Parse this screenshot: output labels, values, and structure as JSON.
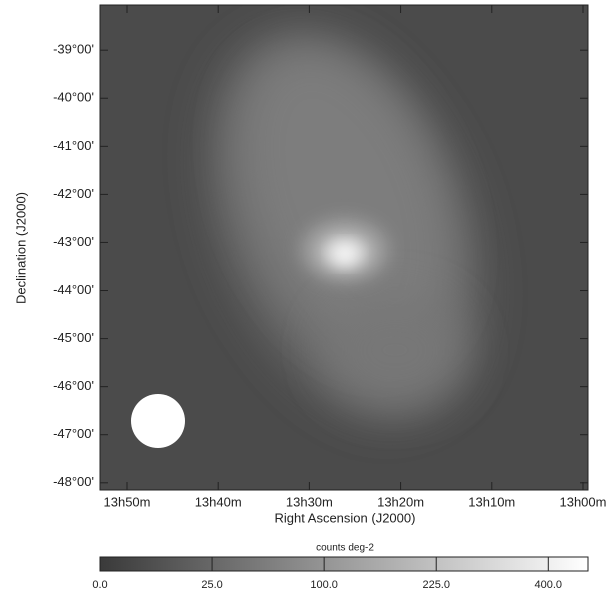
{
  "chart_data": {
    "type": "image",
    "xlabel": "Right Ascension (J2000)",
    "ylabel": "Declination (J2000)",
    "xlim": [
      52.96,
      -0.55
    ],
    "xticks": [
      {
        "value": 50,
        "label": "13h50m"
      },
      {
        "value": 40,
        "label": "13h40m"
      },
      {
        "value": 30,
        "label": "13h30m"
      },
      {
        "value": 20,
        "label": "13h20m"
      },
      {
        "value": 10,
        "label": "13h10m"
      },
      {
        "value": 0,
        "label": "13h00m"
      }
    ],
    "ylim": [
      -48.15,
      -38.06
    ],
    "yticks": [
      {
        "value": -39,
        "label": "-39°00'"
      },
      {
        "value": -40,
        "label": "-40°00'"
      },
      {
        "value": -41,
        "label": "-41°00'"
      },
      {
        "value": -42,
        "label": "-42°00'"
      },
      {
        "value": -43,
        "label": "-43°00'"
      },
      {
        "value": -44,
        "label": "-44°00'"
      },
      {
        "value": -45,
        "label": "-45°00'"
      },
      {
        "value": -46,
        "label": "-46°00'"
      },
      {
        "value": -47,
        "label": "-47°00'"
      },
      {
        "value": -48,
        "label": "-48°00'"
      }
    ],
    "colorbar": {
      "label": "counts deg-2",
      "scale": "sqrt",
      "lim": [
        0,
        474
      ],
      "ticks": [
        {
          "value": 0,
          "label": "0.0"
        },
        {
          "value": 25,
          "label": "25.0"
        },
        {
          "value": 100,
          "label": "100.0"
        },
        {
          "value": 225,
          "label": "225.0"
        },
        {
          "value": 400,
          "label": "400.0"
        }
      ],
      "colors": [
        "#3a3a3a",
        "#ffffff"
      ]
    }
  }
}
